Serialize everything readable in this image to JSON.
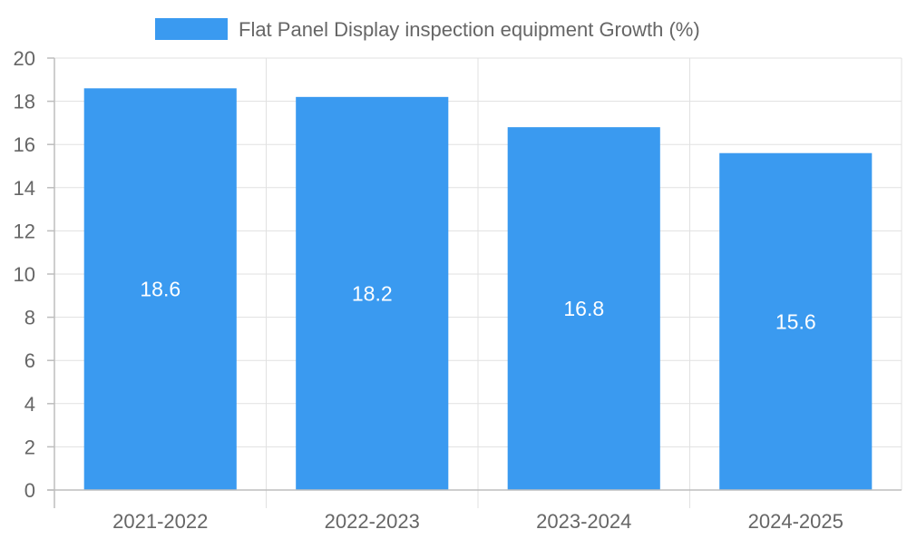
{
  "chart_data": {
    "type": "bar",
    "categories": [
      "2021-2022",
      "2022-2023",
      "2023-2024",
      "2024-2025"
    ],
    "series": [
      {
        "name": "Flat Panel Display inspection equipment Growth (%)",
        "values": [
          18.6,
          18.2,
          16.8,
          15.6
        ],
        "color": "#3a9af0"
      }
    ],
    "title": "",
    "xlabel": "",
    "ylabel": "",
    "ylim": [
      0,
      20
    ],
    "yticks": [
      0,
      2,
      4,
      6,
      8,
      10,
      12,
      14,
      16,
      18,
      20
    ],
    "grid": true,
    "legend": "top-center",
    "data_labels": true
  }
}
